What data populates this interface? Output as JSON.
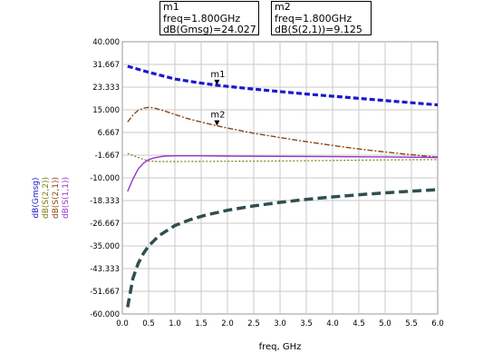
{
  "markers": [
    {
      "name": "m1",
      "freq_text": "freq=1.800GHz",
      "value_text": "dB(Gmsg)=24.027",
      "freq": 1.8,
      "value": 24.027
    },
    {
      "name": "m2",
      "freq_text": "freq=1.800GHz",
      "value_text": "dB(S(2,1))=9.125",
      "freq": 1.8,
      "value": 9.125
    }
  ],
  "chart_data": {
    "type": "line",
    "xlabel": "freq, GHz",
    "xlim": [
      0.0,
      6.0
    ],
    "ylim": [
      -60.0,
      40.0
    ],
    "x_ticks": [
      "0.0",
      "0.5",
      "1.0",
      "1.5",
      "2.0",
      "2.5",
      "3.0",
      "3.5",
      "4.0",
      "4.5",
      "5.0",
      "5.5",
      "6.0"
    ],
    "y_ticks": [
      "40.000",
      "31.667",
      "23.333",
      "15.000",
      "6.667",
      "-1.667",
      "-10.000",
      "-18.333",
      "-26.667",
      "-35.000",
      "-43.333",
      "-51.667",
      "-60.000"
    ],
    "grid": true,
    "legend": "left-vertical",
    "series": [
      {
        "name": "dB(Gmsg)",
        "color": "#1a1acc",
        "dash": "6,3",
        "width": 3.2,
        "x": [
          0.1,
          0.5,
          1.0,
          1.5,
          1.8,
          2.0,
          2.5,
          3.0,
          3.5,
          4.0,
          4.5,
          5.0,
          5.5,
          6.0
        ],
        "values": [
          31.0,
          28.8,
          26.3,
          24.8,
          24.027,
          23.6,
          22.6,
          21.7,
          20.8,
          20.0,
          19.2,
          18.4,
          17.6,
          16.8
        ]
      },
      {
        "name": "dB(S(2,2))",
        "color": "#7a7a10",
        "dash": "2,2",
        "width": 1.2,
        "x": [
          0.1,
          0.3,
          0.5,
          0.7,
          1.0,
          2.0,
          3.0,
          4.0,
          5.0,
          6.0
        ],
        "values": [
          -1.0,
          -2.5,
          -3.8,
          -4.0,
          -4.0,
          -3.9,
          -3.8,
          -3.6,
          -3.4,
          -3.3
        ]
      },
      {
        "name": "dB(S(2,1))",
        "color": "#8b4513",
        "dash": "6,2,2,2",
        "width": 1.4,
        "x": [
          0.1,
          0.2,
          0.3,
          0.4,
          0.5,
          0.6,
          0.8,
          1.0,
          1.2,
          1.5,
          1.8,
          2.0,
          2.5,
          3.0,
          3.5,
          4.0,
          4.5,
          5.0,
          5.5,
          6.0
        ],
        "values": [
          10.5,
          13.0,
          14.8,
          15.6,
          15.9,
          15.7,
          14.6,
          13.3,
          12.0,
          10.5,
          9.125,
          8.3,
          6.4,
          4.8,
          3.3,
          1.9,
          0.6,
          -0.5,
          -1.5,
          -2.4
        ]
      },
      {
        "name": "dB(S(1,1))",
        "color": "#9a32cd",
        "dash": "",
        "width": 1.4,
        "x": [
          0.1,
          0.2,
          0.3,
          0.4,
          0.5,
          0.6,
          0.7,
          0.8,
          1.0,
          1.5,
          2.0,
          3.0,
          4.0,
          5.0,
          6.0
        ],
        "values": [
          -15.0,
          -10.5,
          -6.8,
          -4.6,
          -3.3,
          -2.7,
          -2.3,
          -2.0,
          -1.9,
          -1.9,
          -2.0,
          -2.1,
          -2.2,
          -2.3,
          -2.5
        ]
      },
      {
        "name": "",
        "color": "#2f4f4f",
        "dash": "10,5",
        "width": 3.5,
        "x": [
          0.1,
          0.2,
          0.3,
          0.4,
          0.5,
          0.7,
          1.0,
          1.3,
          1.6,
          2.0,
          2.5,
          3.0,
          3.5,
          4.0,
          4.5,
          5.0,
          5.5,
          6.0
        ],
        "values": [
          -57.5,
          -47.0,
          -41.5,
          -37.8,
          -35.0,
          -31.2,
          -27.5,
          -25.3,
          -23.6,
          -21.9,
          -20.3,
          -19.0,
          -17.9,
          -17.0,
          -16.2,
          -15.5,
          -14.9,
          -14.3
        ]
      }
    ]
  }
}
